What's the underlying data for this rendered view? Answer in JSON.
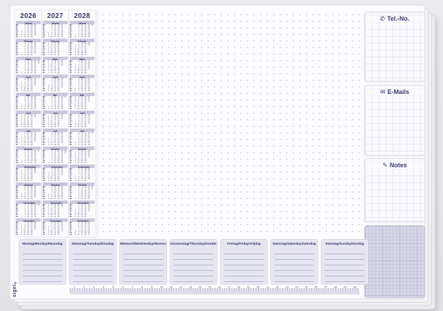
{
  "brand": {
    "logo_text": "sigel",
    "logo_mark": "®"
  },
  "calendar": {
    "weekday_labels": [
      "Mo",
      "Di",
      "Mi",
      "Do",
      "Fr",
      "Sa",
      "So"
    ],
    "years": [
      {
        "year": "2026",
        "months": [
          {
            "name": "Januar",
            "first_dow": 3,
            "days": 31
          },
          {
            "name": "Februar",
            "first_dow": 6,
            "days": 28
          },
          {
            "name": "März",
            "first_dow": 6,
            "days": 31
          },
          {
            "name": "April",
            "first_dow": 2,
            "days": 30
          },
          {
            "name": "Mai",
            "first_dow": 4,
            "days": 31
          },
          {
            "name": "Juni",
            "first_dow": 0,
            "days": 30
          },
          {
            "name": "Juli",
            "first_dow": 2,
            "days": 31
          },
          {
            "name": "August",
            "first_dow": 5,
            "days": 31
          },
          {
            "name": "September",
            "first_dow": 1,
            "days": 30
          },
          {
            "name": "Oktober",
            "first_dow": 3,
            "days": 31
          },
          {
            "name": "November",
            "first_dow": 6,
            "days": 30
          },
          {
            "name": "Dezember",
            "first_dow": 1,
            "days": 31
          }
        ]
      },
      {
        "year": "2027",
        "months": [
          {
            "name": "Januar",
            "first_dow": 4,
            "days": 31
          },
          {
            "name": "Februar",
            "first_dow": 0,
            "days": 28
          },
          {
            "name": "März",
            "first_dow": 0,
            "days": 31
          },
          {
            "name": "April",
            "first_dow": 3,
            "days": 30
          },
          {
            "name": "Mai",
            "first_dow": 5,
            "days": 31
          },
          {
            "name": "Juni",
            "first_dow": 1,
            "days": 30
          },
          {
            "name": "Juli",
            "first_dow": 3,
            "days": 31
          },
          {
            "name": "August",
            "first_dow": 6,
            "days": 31
          },
          {
            "name": "September",
            "first_dow": 2,
            "days": 30
          },
          {
            "name": "Oktober",
            "first_dow": 4,
            "days": 31
          },
          {
            "name": "November",
            "first_dow": 0,
            "days": 30
          },
          {
            "name": "Dezember",
            "first_dow": 2,
            "days": 31
          }
        ]
      },
      {
        "year": "2028",
        "months": [
          {
            "name": "Januar",
            "first_dow": 5,
            "days": 31
          },
          {
            "name": "Februar",
            "first_dow": 1,
            "days": 29
          },
          {
            "name": "März",
            "first_dow": 2,
            "days": 31
          },
          {
            "name": "April",
            "first_dow": 5,
            "days": 30
          },
          {
            "name": "Mai",
            "first_dow": 0,
            "days": 31
          },
          {
            "name": "Juni",
            "first_dow": 3,
            "days": 30
          },
          {
            "name": "Juli",
            "first_dow": 5,
            "days": 31
          },
          {
            "name": "August",
            "first_dow": 1,
            "days": 31
          },
          {
            "name": "September",
            "first_dow": 4,
            "days": 30
          },
          {
            "name": "Oktober",
            "first_dow": 6,
            "days": 31
          },
          {
            "name": "November",
            "first_dow": 2,
            "days": 30
          },
          {
            "name": "Dezember",
            "first_dow": 4,
            "days": 31
          }
        ]
      }
    ]
  },
  "right_panel": {
    "sections": [
      {
        "label": "Tel.-No.",
        "icon_glyph": "✆"
      },
      {
        "label": "E-Mails",
        "icon_glyph": "✉"
      },
      {
        "label": "Notes",
        "icon_glyph": "✎"
      }
    ]
  },
  "week_planner": {
    "days": [
      "Montag/Monday/Maandag",
      "Dienstag/Tuesday/Dinsdag",
      "Mittwoch/Wednesday/Woensdag",
      "Donnerstag/Thursday/Donderdag",
      "Freitag/Friday/Vrijdag",
      "Samstag/Saturday/Zaterdag",
      "Sonntag/Sunday/Zondag"
    ],
    "lines_per_day": 7
  },
  "ruler": {
    "start": 1,
    "end": 30
  },
  "colors": {
    "accent_navy": "#39386b",
    "band_lavender": "#c9c8dd",
    "card_lavender": "#e5e4f1",
    "grid_block": "#d8d7e8",
    "dot_gray": "#c6c6ce"
  }
}
